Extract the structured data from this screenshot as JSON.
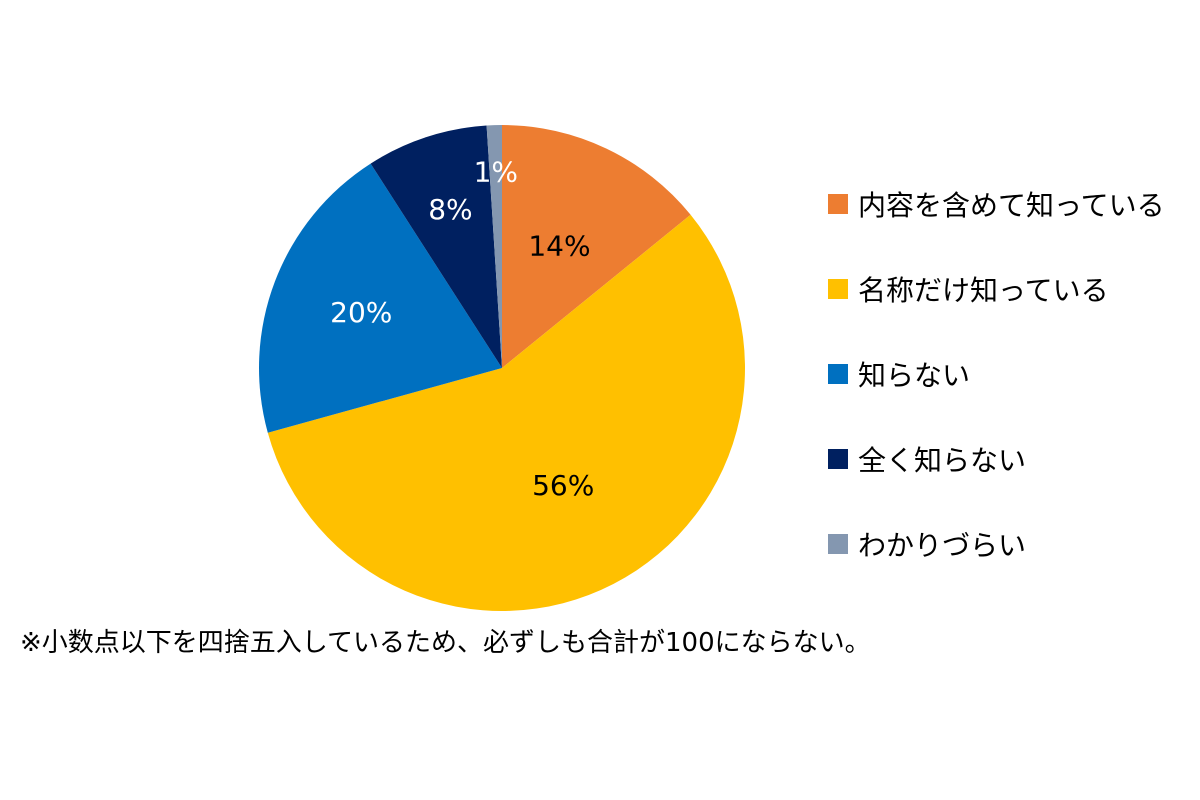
{
  "chart_data": {
    "type": "pie",
    "start_angle_deg": 0,
    "direction": "clockwise",
    "legend_position": "right",
    "slices": [
      {
        "name": "内容を含めて知っている",
        "value": 14,
        "label": "14%",
        "color": "#ED7D31",
        "label_color": "#000000"
      },
      {
        "name": "名称だけ知っている",
        "value": 56,
        "label": "56%",
        "color": "#FFC000",
        "label_color": "#000000"
      },
      {
        "name": "知らない",
        "value": 20,
        "label": "20%",
        "color": "#0070C0",
        "label_color": "#FFFFFF"
      },
      {
        "name": "全く知らない",
        "value": 8,
        "label": "8%",
        "color": "#002060",
        "label_color": "#FFFFFF"
      },
      {
        "name": "わかりづらい",
        "value": 1,
        "label": "1%",
        "color": "#8497B0",
        "label_color": "#FFFFFF"
      }
    ]
  },
  "footnote": "※小数点以下を四捨五入しているため、必ずしも合計が100にならない。"
}
